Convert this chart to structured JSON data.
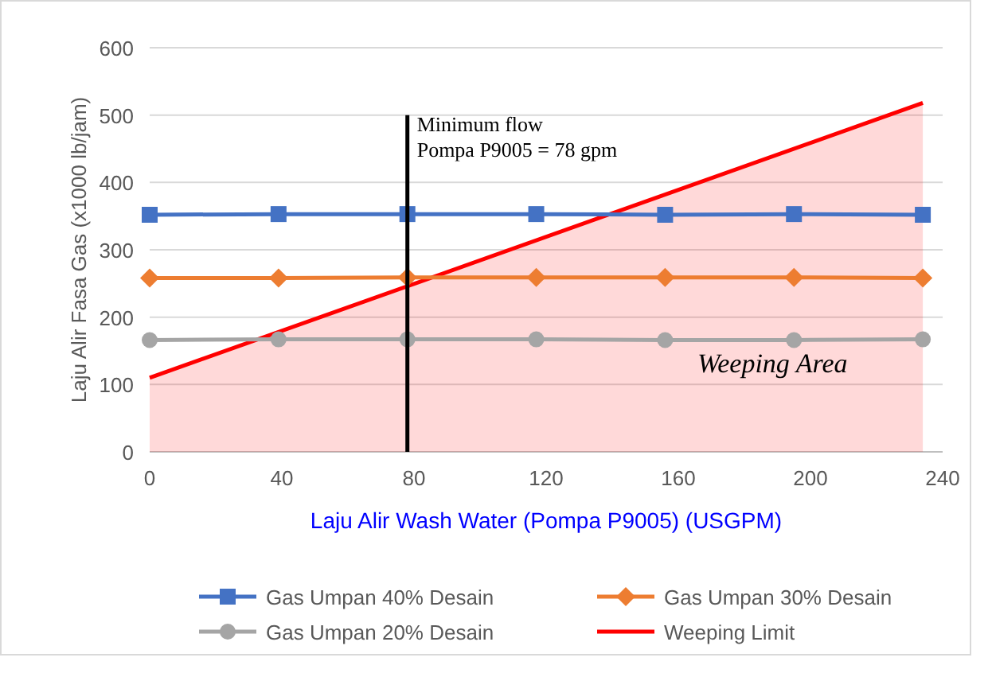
{
  "chart_data": {
    "type": "line",
    "xlabel": "Laju Alir Wash Water (Pompa P9005) (USGPM)",
    "ylabel": "Laju Alir Fasa Gas  (x1000 lb/jam)",
    "xlim": [
      0,
      240
    ],
    "xticks": [
      0,
      40,
      80,
      120,
      160,
      200,
      240
    ],
    "ylim": [
      0,
      600
    ],
    "yticks": [
      0,
      100,
      200,
      300,
      400,
      500,
      600
    ],
    "grid": "y",
    "legend": "bottom",
    "series": [
      {
        "name": "Gas Umpan 40% Desain",
        "color": "#4472c4",
        "marker": "square",
        "x": [
          0,
          39,
          78,
          117,
          156,
          195,
          234
        ],
        "values": [
          352,
          353,
          353,
          353,
          352,
          353,
          352
        ]
      },
      {
        "name": "Gas Umpan 30% Desain",
        "color": "#ed7d31",
        "marker": "diamond",
        "x": [
          0,
          39,
          78,
          117,
          156,
          195,
          234
        ],
        "values": [
          258,
          258,
          259,
          259,
          259,
          259,
          258
        ]
      },
      {
        "name": "Gas Umpan 20% Desain",
        "color": "#a5a5a5",
        "marker": "circle",
        "x": [
          0,
          39,
          78,
          117,
          156,
          195,
          234
        ],
        "values": [
          166,
          167,
          167,
          167,
          166,
          166,
          167
        ]
      },
      {
        "name": "Weeping Limit",
        "type": "area",
        "color": "#ff0000",
        "marker": "none",
        "x": [
          0,
          234
        ],
        "values": [
          110,
          518
        ]
      }
    ],
    "ref_lines": [
      {
        "axis": "x",
        "value": 78,
        "label": "Minimum flow\nPompa P9005 = 78 gpm",
        "color": "#000000"
      }
    ],
    "annotations": [
      "Weeping Area"
    ]
  }
}
